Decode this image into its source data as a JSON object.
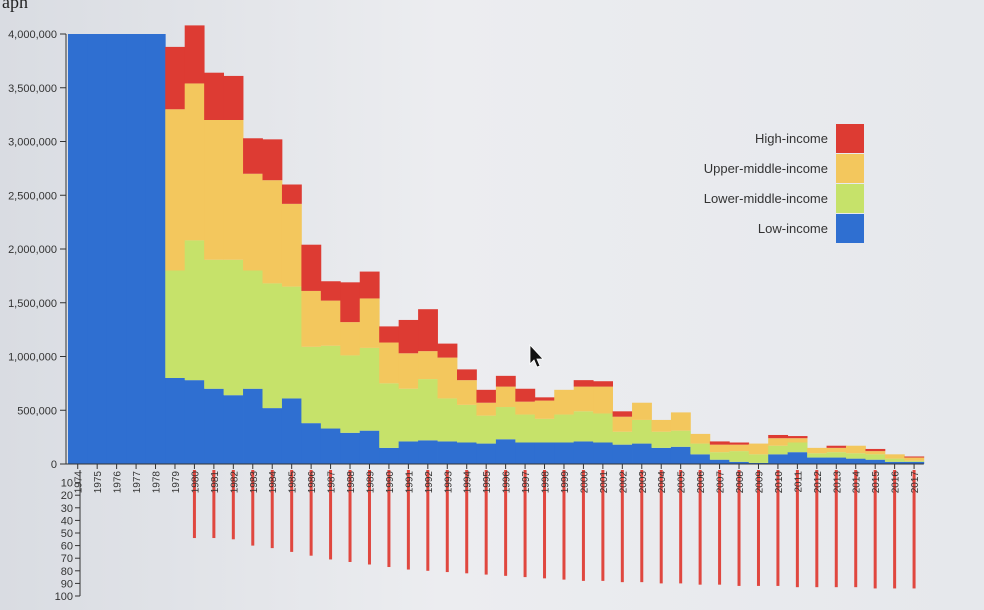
{
  "chart_data": {
    "type": "bar",
    "title": "aph",
    "xlabel": "",
    "ylabel": "",
    "ylim": [
      0,
      4000000
    ],
    "y_ticks": [
      "0",
      "500,000",
      "1,000,000",
      "1,500,000",
      "2,000,000",
      "2,500,000",
      "3,000,000",
      "3,500,000",
      "4,000,000"
    ],
    "neg_axis_ticks": [
      "10",
      "20",
      "30",
      "40",
      "50",
      "60",
      "70",
      "80",
      "90",
      "100"
    ],
    "legend": {
      "placement": "top-right",
      "items": [
        {
          "label": "High-income",
          "color": "#dd3b33"
        },
        {
          "label": "Upper-middle-income",
          "color": "#f3c75d"
        },
        {
          "label": "Lower-middle-income",
          "color": "#c6e26a"
        },
        {
          "label": "Low-income",
          "color": "#2f6fd1"
        }
      ]
    },
    "categories": [
      "1974",
      "1975",
      "1976",
      "1977",
      "1978",
      "1979",
      "1980",
      "1981",
      "1982",
      "1983",
      "1984",
      "1985",
      "1986",
      "1987",
      "1988",
      "1989",
      "1990",
      "1991",
      "1992",
      "1993",
      "1994",
      "1995",
      "1996",
      "1997",
      "1998",
      "1999",
      "2000",
      "2001",
      "2002",
      "2003",
      "2004",
      "2005",
      "2006",
      "2007",
      "2008",
      "2009",
      "2010",
      "2011",
      "2012",
      "2013",
      "2014",
      "2015",
      "2016",
      "2017"
    ],
    "series": [
      {
        "name": "Low-income",
        "color": "#2f6fd1",
        "values": [
          4000000,
          4000000,
          4000000,
          4000000,
          4000000,
          800000,
          780000,
          700000,
          640000,
          700000,
          520000,
          610000,
          380000,
          330000,
          290000,
          310000,
          150000,
          210000,
          220000,
          210000,
          200000,
          190000,
          230000,
          200000,
          200000,
          200000,
          210000,
          200000,
          180000,
          190000,
          150000,
          160000,
          90000,
          40000,
          20000,
          10000,
          90000,
          110000,
          60000,
          60000,
          50000,
          40000,
          20000,
          20000
        ]
      },
      {
        "name": "Lower-middle-income",
        "color": "#c6e26a",
        "values": [
          0,
          0,
          0,
          0,
          0,
          1000000,
          1300000,
          1200000,
          1260000,
          1100000,
          1160000,
          1040000,
          710000,
          770000,
          720000,
          770000,
          600000,
          490000,
          570000,
          400000,
          350000,
          260000,
          300000,
          260000,
          220000,
          260000,
          280000,
          270000,
          120000,
          220000,
          150000,
          150000,
          100000,
          70000,
          100000,
          80000,
          80000,
          90000,
          40000,
          50000,
          50000,
          50000,
          30000,
          10000
        ]
      },
      {
        "name": "Upper-middle-income",
        "color": "#f3c75d",
        "values": [
          0,
          0,
          0,
          0,
          0,
          1500000,
          1460000,
          1300000,
          1300000,
          900000,
          960000,
          770000,
          520000,
          420000,
          310000,
          460000,
          380000,
          330000,
          260000,
          380000,
          230000,
          120000,
          190000,
          120000,
          170000,
          230000,
          230000,
          250000,
          140000,
          160000,
          110000,
          170000,
          90000,
          70000,
          60000,
          100000,
          70000,
          40000,
          50000,
          40000,
          70000,
          30000,
          40000,
          30000
        ]
      },
      {
        "name": "High-income",
        "color": "#dd3b33",
        "values": [
          0,
          0,
          0,
          0,
          0,
          580000,
          540000,
          440000,
          410000,
          330000,
          380000,
          180000,
          430000,
          180000,
          370000,
          250000,
          150000,
          310000,
          390000,
          130000,
          100000,
          120000,
          100000,
          120000,
          30000,
          0,
          60000,
          50000,
          50000,
          0,
          0,
          0,
          0,
          30000,
          20000,
          0,
          30000,
          20000,
          0,
          20000,
          0,
          20000,
          0,
          10000
        ]
      }
    ],
    "lower_values": [
      0,
      0,
      0,
      0,
      0,
      0,
      54,
      54,
      55,
      60,
      62,
      65,
      68,
      71,
      73,
      75,
      77,
      79,
      80,
      81,
      82,
      83,
      84,
      85,
      86,
      87,
      88,
      88,
      89,
      89,
      90,
      90,
      91,
      91,
      92,
      92,
      92,
      93,
      93,
      93,
      93,
      94,
      94,
      94
    ]
  }
}
